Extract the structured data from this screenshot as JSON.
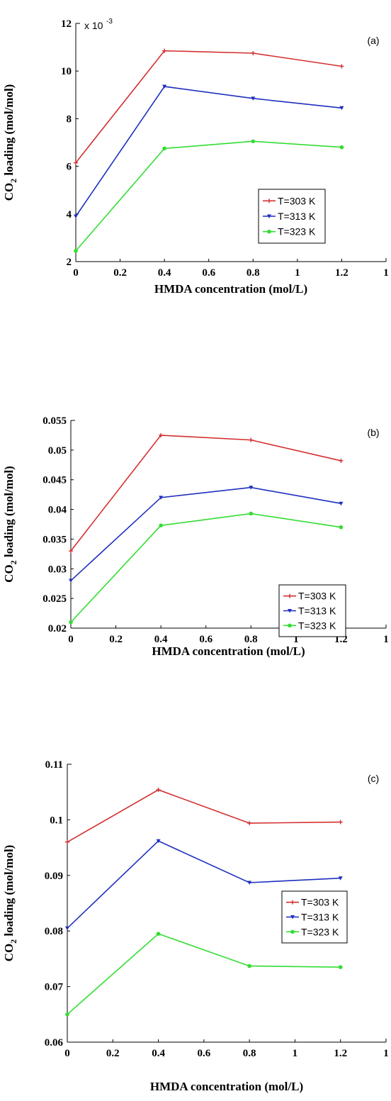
{
  "chart_data": [
    {
      "type": "line",
      "panel_label": "(a)",
      "exponent_label": "x 10",
      "exponent_power": "-3",
      "xlabel": "HMDA concentration (mol/L)",
      "ylabel_prefix": "CO",
      "ylabel_sub": "2",
      "ylabel_suffix": " loading (mol/mol)",
      "xlim": [
        0,
        1.4
      ],
      "ylim": [
        2,
        12
      ],
      "x_ticks": [
        "0",
        "0.2",
        "0.4",
        "0.6",
        "0.8",
        "1",
        "1.2",
        "1"
      ],
      "y_ticks": [
        "2",
        "4",
        "6",
        "8",
        "10",
        "12"
      ],
      "x": [
        0,
        0.4,
        0.8,
        1.2
      ],
      "series": [
        {
          "name": "T=303 K",
          "color": "#d32f2f",
          "marker": "plus",
          "values": [
            6.15,
            10.85,
            10.75,
            10.2
          ]
        },
        {
          "name": "T=313 K",
          "color": "#1f2fbf",
          "marker": "triangle-down",
          "values": [
            3.9,
            9.35,
            8.85,
            8.45
          ]
        },
        {
          "name": "T=323 K",
          "color": "#33dd33",
          "marker": "circle",
          "values": [
            2.45,
            6.75,
            7.05,
            6.8
          ]
        }
      ],
      "legend": "lower-right"
    },
    {
      "type": "line",
      "panel_label": "(b)",
      "xlabel": "HMDA concentration (mol/L)",
      "ylabel_prefix": "CO",
      "ylabel_sub": "2",
      "ylabel_suffix": " loading (mol/mol)",
      "xlim": [
        0,
        1.4
      ],
      "ylim": [
        0.02,
        0.055
      ],
      "x_ticks": [
        "0",
        "0.2",
        "0.4",
        "0.6",
        "0.8",
        "1",
        "1.2",
        "1"
      ],
      "y_ticks": [
        "0.02",
        "0.025",
        "0.03",
        "0.035",
        "0.04",
        "0.045",
        "0.05",
        "0.055"
      ],
      "x": [
        0,
        0.4,
        0.8,
        1.2
      ],
      "series": [
        {
          "name": "T=303 K",
          "color": "#d32f2f",
          "marker": "plus",
          "values": [
            0.033,
            0.0525,
            0.0517,
            0.0482
          ]
        },
        {
          "name": "T=313 K",
          "color": "#1f2fbf",
          "marker": "triangle-down",
          "values": [
            0.028,
            0.042,
            0.0437,
            0.041
          ]
        },
        {
          "name": "T=323 K",
          "color": "#33dd33",
          "marker": "circle",
          "values": [
            0.021,
            0.0373,
            0.0393,
            0.037
          ]
        }
      ],
      "legend": "lower-right"
    },
    {
      "type": "line",
      "panel_label": "(c)",
      "xlabel": "HMDA concentration (mol/L)",
      "ylabel_prefix": "CO",
      "ylabel_sub": "2",
      "ylabel_suffix": " loading (mol/mol)",
      "xlim": [
        0,
        1.4
      ],
      "ylim": [
        0.06,
        0.11
      ],
      "x_ticks": [
        "0",
        "0.2",
        "0.4",
        "0.6",
        "0.8",
        "1",
        "1.2",
        "1"
      ],
      "y_ticks": [
        "0.06",
        "0.07",
        "0.08",
        "0.09",
        "0.1",
        "0.11"
      ],
      "x": [
        0,
        0.4,
        0.8,
        1.2
      ],
      "series": [
        {
          "name": "T=303 K",
          "color": "#d32f2f",
          "marker": "plus",
          "values": [
            0.096,
            0.1054,
            0.0994,
            0.0996
          ]
        },
        {
          "name": "T=313 K",
          "color": "#1f2fbf",
          "marker": "triangle-down",
          "values": [
            0.0805,
            0.0962,
            0.0887,
            0.0895
          ]
        },
        {
          "name": "T=323 K",
          "color": "#33dd33",
          "marker": "circle",
          "values": [
            0.065,
            0.0795,
            0.0737,
            0.0735
          ]
        }
      ],
      "legend": "middle-right"
    }
  ]
}
